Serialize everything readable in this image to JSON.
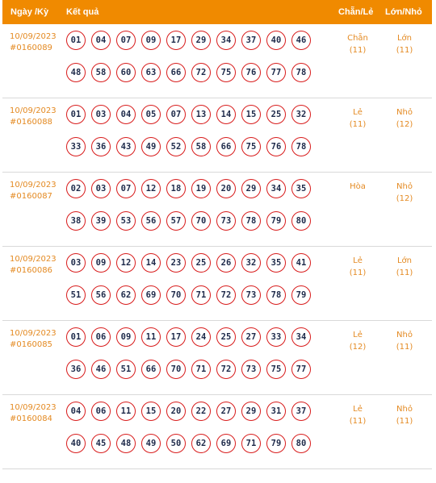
{
  "header": {
    "date_col": "Ngày /Kỳ",
    "result_col": "Kết quả",
    "chan_le_col": "Chẵn/Lẻ",
    "lon_nho_col": "Lớn/Nhỏ"
  },
  "rows": [
    {
      "date": "10/09/2023",
      "code": "#0160089",
      "line1": [
        "01",
        "04",
        "07",
        "09",
        "17",
        "29",
        "34",
        "37",
        "40",
        "46"
      ],
      "line2": [
        "48",
        "58",
        "60",
        "63",
        "66",
        "72",
        "75",
        "76",
        "77",
        "78"
      ],
      "chan_le": "Chẵn",
      "chan_le_count": "(11)",
      "lon_nho": "Lớn",
      "lon_nho_count": "(11)"
    },
    {
      "date": "10/09/2023",
      "code": "#0160088",
      "line1": [
        "01",
        "03",
        "04",
        "05",
        "07",
        "13",
        "14",
        "15",
        "25",
        "32"
      ],
      "line2": [
        "33",
        "36",
        "43",
        "49",
        "52",
        "58",
        "66",
        "75",
        "76",
        "78"
      ],
      "chan_le": "Lẻ",
      "chan_le_count": "(11)",
      "lon_nho": "Nhỏ",
      "lon_nho_count": "(12)"
    },
    {
      "date": "10/09/2023",
      "code": "#0160087",
      "line1": [
        "02",
        "03",
        "07",
        "12",
        "18",
        "19",
        "20",
        "29",
        "34",
        "35"
      ],
      "line2": [
        "38",
        "39",
        "53",
        "56",
        "57",
        "70",
        "73",
        "78",
        "79",
        "80"
      ],
      "chan_le": "Hòa",
      "chan_le_count": "",
      "lon_nho": "Nhỏ",
      "lon_nho_count": "(12)"
    },
    {
      "date": "10/09/2023",
      "code": "#0160086",
      "line1": [
        "03",
        "09",
        "12",
        "14",
        "23",
        "25",
        "26",
        "32",
        "35",
        "41"
      ],
      "line2": [
        "51",
        "56",
        "62",
        "69",
        "70",
        "71",
        "72",
        "73",
        "78",
        "79"
      ],
      "chan_le": "Lẻ",
      "chan_le_count": "(11)",
      "lon_nho": "Lớn",
      "lon_nho_count": "(11)"
    },
    {
      "date": "10/09/2023",
      "code": "#0160085",
      "line1": [
        "01",
        "06",
        "09",
        "11",
        "17",
        "24",
        "25",
        "27",
        "33",
        "34"
      ],
      "line2": [
        "36",
        "46",
        "51",
        "66",
        "70",
        "71",
        "72",
        "73",
        "75",
        "77"
      ],
      "chan_le": "Lẻ",
      "chan_le_count": "(12)",
      "lon_nho": "Nhỏ",
      "lon_nho_count": "(11)"
    },
    {
      "date": "10/09/2023",
      "code": "#0160084",
      "line1": [
        "04",
        "06",
        "11",
        "15",
        "20",
        "22",
        "27",
        "29",
        "31",
        "37"
      ],
      "line2": [
        "40",
        "45",
        "48",
        "49",
        "50",
        "62",
        "69",
        "71",
        "79",
        "80"
      ],
      "chan_le": "Lẻ",
      "chan_le_count": "(11)",
      "lon_nho": "Nhỏ",
      "lon_nho_count": "(11)"
    }
  ]
}
